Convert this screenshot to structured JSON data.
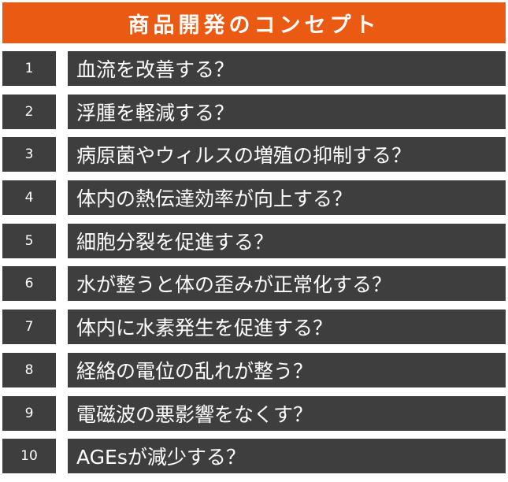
{
  "title": "商品開発のコンセプト",
  "items": [
    {
      "num": "1",
      "text": "血流を改善する？"
    },
    {
      "num": "2",
      "text": "浮腫を軽減する？"
    },
    {
      "num": "3",
      "text": "病原菌やウィルスの増殖の抑制する？"
    },
    {
      "num": "4",
      "text": "体内の熱伝達効率が向上する？"
    },
    {
      "num": "5",
      "text": "細胞分裂を促進する？"
    },
    {
      "num": "6",
      "text": "水が整うと体の歪みが正常化する？"
    },
    {
      "num": "7",
      "text": "体内に水素発生を促進する？"
    },
    {
      "num": "8",
      "text": "経絡の電位の乱れが整う？"
    },
    {
      "num": "9",
      "text": "電磁波の悪影響をなくす？"
    },
    {
      "num": "10",
      "text": "AGEsが減少する？"
    }
  ],
  "colors": {
    "title_bg": "#ea5a12",
    "row_bg": "#3e3e3e",
    "text": "#ffffff"
  }
}
